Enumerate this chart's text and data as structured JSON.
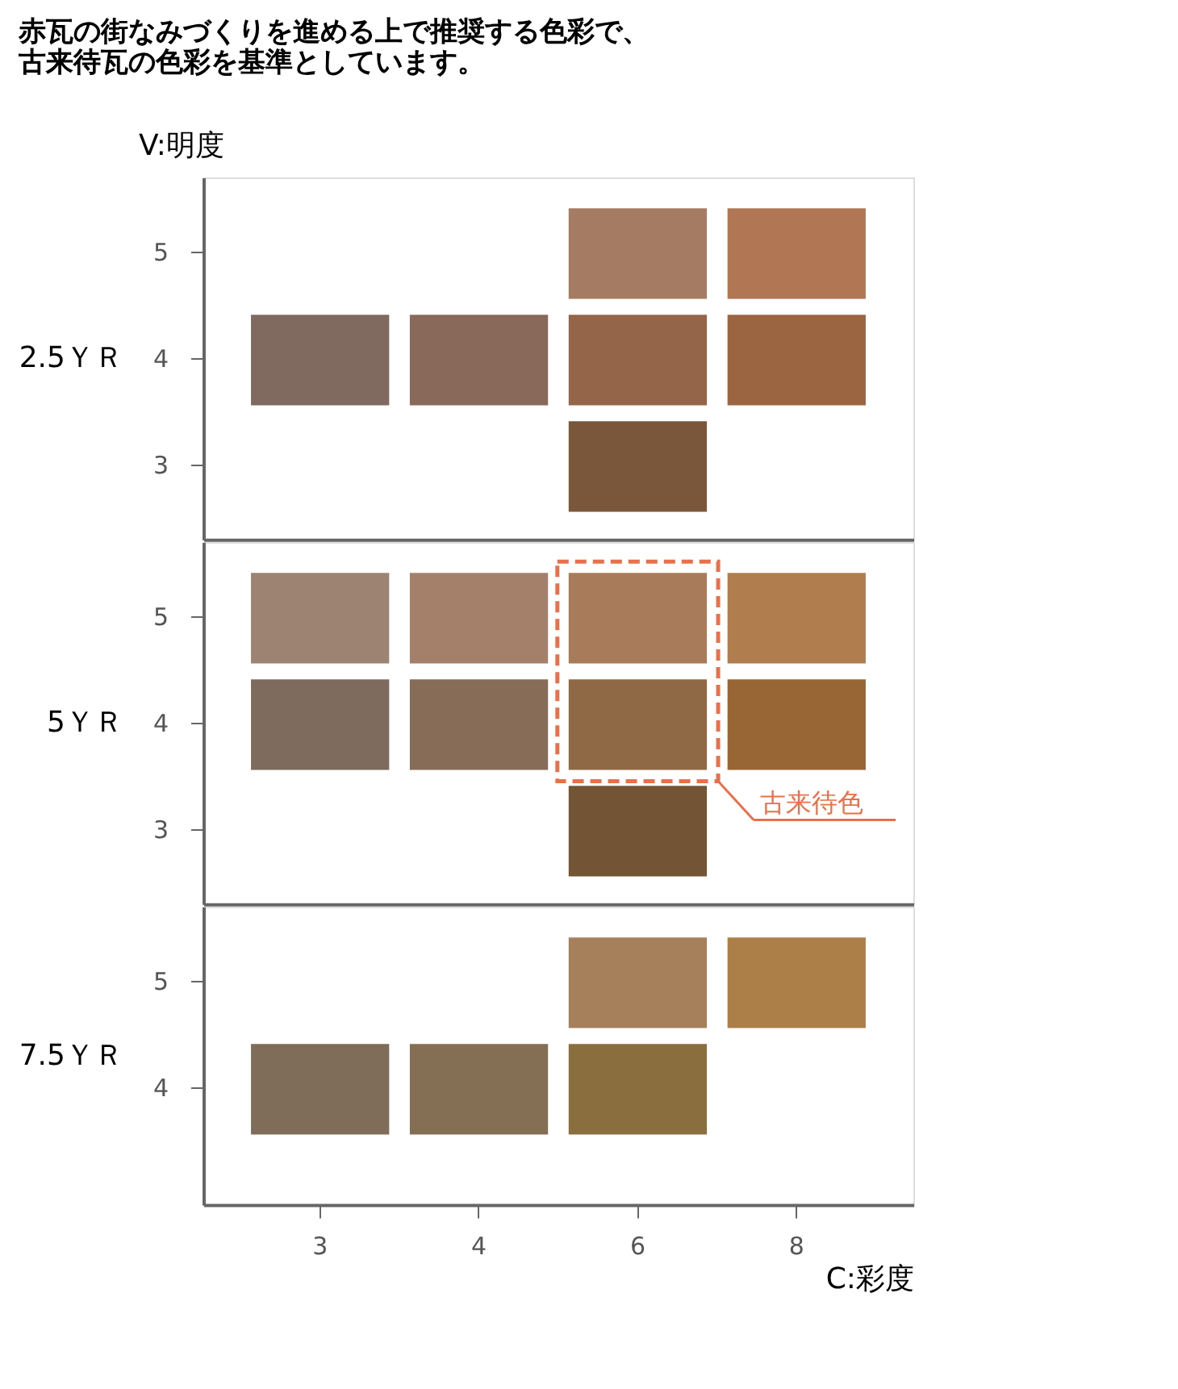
{
  "chart_data": [
    {
      "type": "bar",
      "title": "赤瓦の街なみづくりを進める上で推奨する色彩で、古来待瓦の色彩を基準としています。",
      "ylabel": "2.5ＹＲ",
      "annotations": [
        "V:明度"
      ],
      "categories": [
        "3",
        "4",
        "6",
        "8"
      ],
      "ylim": [
        2.3,
        5.7
      ],
      "yticks": [
        3,
        4,
        5
      ],
      "tick_labels": "y",
      "series": [
        {
          "values": [
            null,
            null,
            0.85,
            0.85
          ],
          "base": [
            null,
            null,
            4.56,
            4.56
          ],
          "colors": [
            null,
            null,
            "#a67b63",
            "#b17755"
          ]
        },
        {
          "values": [
            0.85,
            0.85,
            0.85,
            0.85
          ],
          "base": [
            3.56,
            3.56,
            3.56,
            3.56
          ],
          "colors": [
            "#806a60",
            "#88695a",
            "#946548",
            "#9a6540"
          ]
        },
        {
          "values": [
            null,
            null,
            0.85,
            null
          ],
          "base": [
            null,
            null,
            2.56,
            null
          ],
          "colors": [
            null,
            null,
            "#7a563b",
            null
          ]
        }
      ]
    },
    {
      "type": "bar",
      "ylabel": "5ＹＲ",
      "annotations": [
        "古来待色"
      ],
      "categories": [
        "3",
        "4",
        "6",
        "8"
      ],
      "ylim": [
        2.3,
        5.7
      ],
      "yticks": [
        3,
        4,
        5
      ],
      "tick_labels": "y",
      "series": [
        {
          "values": [
            0.85,
            0.85,
            0.85,
            0.85
          ],
          "base": [
            4.56,
            4.56,
            4.56,
            4.56
          ],
          "colors": [
            "#9d8472",
            "#a4806a",
            "#a87b5a",
            "#b07e4e"
          ]
        },
        {
          "values": [
            0.85,
            0.85,
            0.85,
            0.85
          ],
          "base": [
            3.56,
            3.56,
            3.56,
            3.56
          ],
          "colors": [
            "#7f6b5e",
            "#876d57",
            "#8f6946",
            "#986634"
          ]
        },
        {
          "values": [
            null,
            null,
            0.85,
            null
          ],
          "base": [
            null,
            null,
            2.56,
            null
          ],
          "colors": [
            null,
            null,
            "#735535",
            null
          ]
        }
      ]
    },
    {
      "type": "bar",
      "ylabel": "7.5ＹＲ",
      "xlabel": "C:彩度",
      "categories": [
        "3",
        "4",
        "6",
        "8"
      ],
      "ylim": [
        2.9,
        5.7
      ],
      "yticks": [
        4,
        5
      ],
      "series": [
        {
          "values": [
            null,
            null,
            0.85,
            0.85
          ],
          "base": [
            null,
            null,
            4.56,
            4.56
          ],
          "colors": [
            null,
            null,
            "#a6805a",
            "#ad7f48"
          ]
        },
        {
          "values": [
            0.85,
            0.85,
            0.85,
            null
          ],
          "base": [
            3.56,
            3.56,
            3.56,
            null
          ],
          "colors": [
            "#7f6d5a",
            "#846f55",
            "#8b6e3e",
            null
          ]
        }
      ]
    }
  ]
}
